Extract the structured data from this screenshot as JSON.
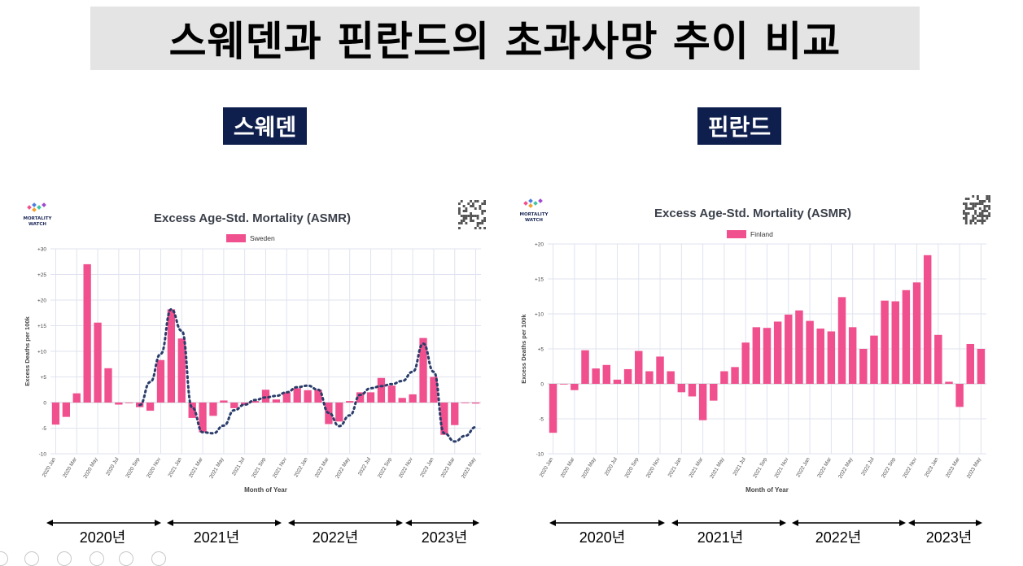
{
  "page": {
    "title": "스웨덴과 핀란드의 초과사망 추이 비교",
    "label_left": "스웨덴",
    "label_right": "핀란드",
    "logo_line1": "MORTALITY",
    "logo_line2": "WATCH"
  },
  "chart_data": [
    {
      "type": "bar",
      "title": "Excess Age-Std. Mortality (ASMR)",
      "xlabel": "Month of Year",
      "ylabel": "Excess Deaths per 100k",
      "ylim": [
        -10,
        30
      ],
      "yticks": [
        "-10",
        "-5",
        "0",
        "+5",
        "+10",
        "+15",
        "+20",
        "+25",
        "+30"
      ],
      "legend_position": "top-center",
      "grid": true,
      "color": "#f0508e",
      "series": [
        {
          "name": "Sweden"
        }
      ],
      "categories": [
        "2020 Jan",
        "2020 Feb",
        "2020 Mar",
        "2020 Apr",
        "2020 May",
        "2020 Jun",
        "2020 Jul",
        "2020 Aug",
        "2020 Sep",
        "2020 Oct",
        "2020 Nov",
        "2020 Dec",
        "2021 Jan",
        "2021 Feb",
        "2021 Mar",
        "2021 Apr",
        "2021 May",
        "2021 Jun",
        "2021 Jul",
        "2021 Aug",
        "2021 Sep",
        "2021 Oct",
        "2021 Nov",
        "2021 Dec",
        "2022 Jan",
        "2022 Feb",
        "2022 Mar",
        "2022 Apr",
        "2022 May",
        "2022 Jun",
        "2022 Jul",
        "2022 Aug",
        "2022 Sep",
        "2022 Oct",
        "2022 Nov",
        "2022 Dec",
        "2023 Jan",
        "2023 Feb",
        "2023 Mar",
        "2023 Apr",
        "2023 May"
      ],
      "tick_labels": [
        "2020 Jan",
        "2020 Mar",
        "2020 May",
        "2020 Jul",
        "2020 Sep",
        "2020 Nov",
        "2021 Jan",
        "2021 Mar",
        "2021 May",
        "2021 Jul",
        "2021 Sep",
        "2021 Nov",
        "2022 Jan",
        "2022 Mar",
        "2022 May",
        "2022 Jul",
        "2022 Sep",
        "2022 Nov",
        "2023 Jan",
        "2023 Mar",
        "2023 May"
      ],
      "values": [
        -4.3,
        -2.8,
        1.8,
        27.0,
        15.6,
        6.7,
        -0.4,
        0.0,
        -0.9,
        -1.6,
        8.3,
        18.2,
        12.5,
        -3.0,
        -5.8,
        -2.6,
        0.4,
        -1.1,
        -0.5,
        0.3,
        2.5,
        0.6,
        2.0,
        2.8,
        2.4,
        2.5,
        -4.2,
        -3.7,
        0.3,
        2.0,
        2.0,
        4.8,
        3.3,
        0.9,
        1.6,
        12.6,
        5.0,
        -6.3,
        -4.4,
        0.0,
        -0.2
      ],
      "trend_line": [
        [
          8,
          -0.5
        ],
        [
          9,
          4.0
        ],
        [
          10,
          9.5
        ],
        [
          11,
          18.2
        ],
        [
          12,
          14.0
        ],
        [
          13,
          -1.0
        ],
        [
          14,
          -5.8
        ],
        [
          15,
          -6.0
        ],
        [
          16,
          -4.5
        ],
        [
          17,
          -1.5
        ],
        [
          18,
          -0.4
        ],
        [
          19,
          0.5
        ],
        [
          20,
          1.0
        ],
        [
          21,
          1.3
        ],
        [
          22,
          2.0
        ],
        [
          23,
          3.0
        ],
        [
          24,
          3.3
        ],
        [
          25,
          2.5
        ],
        [
          26,
          -2.0
        ],
        [
          27,
          -4.6
        ],
        [
          28,
          -2.5
        ],
        [
          29,
          1.5
        ],
        [
          30,
          2.8
        ],
        [
          31,
          3.2
        ],
        [
          32,
          3.6
        ],
        [
          33,
          4.2
        ],
        [
          34,
          6.0
        ],
        [
          35,
          11.5
        ],
        [
          36,
          6.0
        ],
        [
          37,
          -6.0
        ],
        [
          38,
          -7.6
        ],
        [
          39,
          -6.5
        ],
        [
          40,
          -4.8
        ]
      ],
      "year_labels": [
        "2020년",
        "2021년",
        "2022년",
        "2023년"
      ]
    },
    {
      "type": "bar",
      "title": "Excess Age-Std. Mortality (ASMR)",
      "xlabel": "Month of Year",
      "ylabel": "Excess Deaths per 100k",
      "ylim": [
        -10,
        20
      ],
      "yticks": [
        "-10",
        "-5",
        "0",
        "+5",
        "+10",
        "+15",
        "+20"
      ],
      "legend_position": "top-center",
      "grid": true,
      "color": "#f0508e",
      "series": [
        {
          "name": "Finland"
        }
      ],
      "categories": [
        "2020 Jan",
        "2020 Feb",
        "2020 Mar",
        "2020 Apr",
        "2020 May",
        "2020 Jun",
        "2020 Jul",
        "2020 Aug",
        "2020 Sep",
        "2020 Oct",
        "2020 Nov",
        "2020 Dec",
        "2021 Jan",
        "2021 Feb",
        "2021 Mar",
        "2021 Apr",
        "2021 May",
        "2021 Jun",
        "2021 Jul",
        "2021 Aug",
        "2021 Sep",
        "2021 Oct",
        "2021 Nov",
        "2021 Dec",
        "2022 Jan",
        "2022 Feb",
        "2022 Mar",
        "2022 Apr",
        "2022 May",
        "2022 Jun",
        "2022 Jul",
        "2022 Aug",
        "2022 Sep",
        "2022 Oct",
        "2022 Nov",
        "2022 Dec",
        "2023 Jan",
        "2023 Feb",
        "2023 Mar",
        "2023 Apr",
        "2023 May"
      ],
      "tick_labels": [
        "2020 Jan",
        "2020 Mar",
        "2020 May",
        "2020 Jul",
        "2020 Sep",
        "2020 Nov",
        "2021 Jan",
        "2021 Mar",
        "2021 May",
        "2021 Jul",
        "2021 Sep",
        "2021 Nov",
        "2022 Jan",
        "2022 Mar",
        "2022 May",
        "2022 Jul",
        "2022 Sep",
        "2022 Nov",
        "2023 Jan",
        "2023 Mar",
        "2023 May"
      ],
      "values": [
        -7.0,
        0.0,
        -0.9,
        4.8,
        2.2,
        2.7,
        0.6,
        2.1,
        4.7,
        1.8,
        3.9,
        1.8,
        -1.2,
        -1.8,
        -5.2,
        -2.4,
        1.8,
        2.4,
        5.9,
        8.1,
        8.0,
        8.9,
        9.9,
        10.5,
        9.0,
        7.9,
        7.5,
        12.4,
        8.1,
        5.0,
        6.9,
        11.9,
        11.8,
        13.4,
        14.5,
        18.4,
        7.0,
        0.3,
        -3.3,
        5.7,
        5.0
      ],
      "year_labels": [
        "2020년",
        "2021년",
        "2022년",
        "2023년"
      ]
    }
  ]
}
